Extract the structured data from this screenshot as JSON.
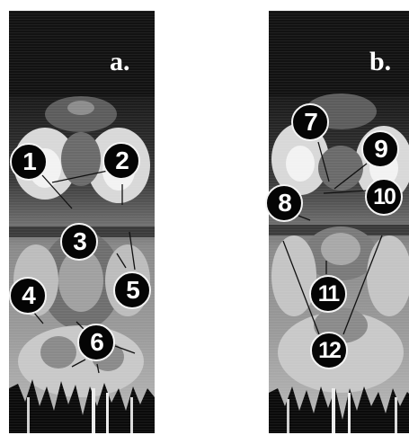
{
  "panels": {
    "a": {
      "letter": "a."
    },
    "b": {
      "letter": "b."
    }
  },
  "markers": {
    "m1": "1",
    "m2": "2",
    "m3": "3",
    "m4": "4",
    "m5": "5",
    "m6": "6",
    "m7": "7",
    "m8": "8",
    "m9": "9",
    "m10": "10",
    "m11": "11",
    "m12": "12"
  }
}
